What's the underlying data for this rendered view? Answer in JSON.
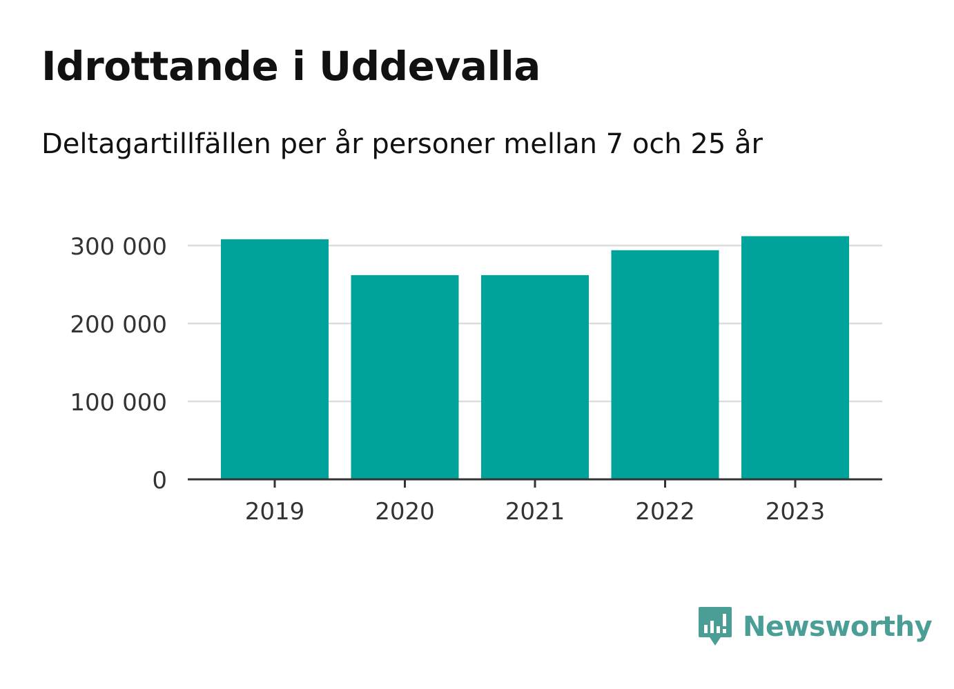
{
  "header": {
    "title": "Idrottande i Uddevalla",
    "subtitle": "Deltagartillfällen per år personer mellan 7 och 25 år"
  },
  "chart_data": {
    "type": "bar",
    "categories": [
      "2019",
      "2020",
      "2021",
      "2022",
      "2023"
    ],
    "values": [
      308000,
      262000,
      262000,
      294000,
      312000
    ],
    "ylim": [
      0,
      300000
    ],
    "yticks": [
      0,
      100000,
      200000,
      300000
    ],
    "ytick_labels": [
      "0",
      "100 000",
      "200 000",
      "300 000"
    ],
    "grid": true,
    "bar_color": "#00a39a"
  },
  "branding": {
    "logo_text": "Newsworthy",
    "logo_color": "#4b9e96",
    "icon": "bar-chart-speech-bubble-icon"
  }
}
